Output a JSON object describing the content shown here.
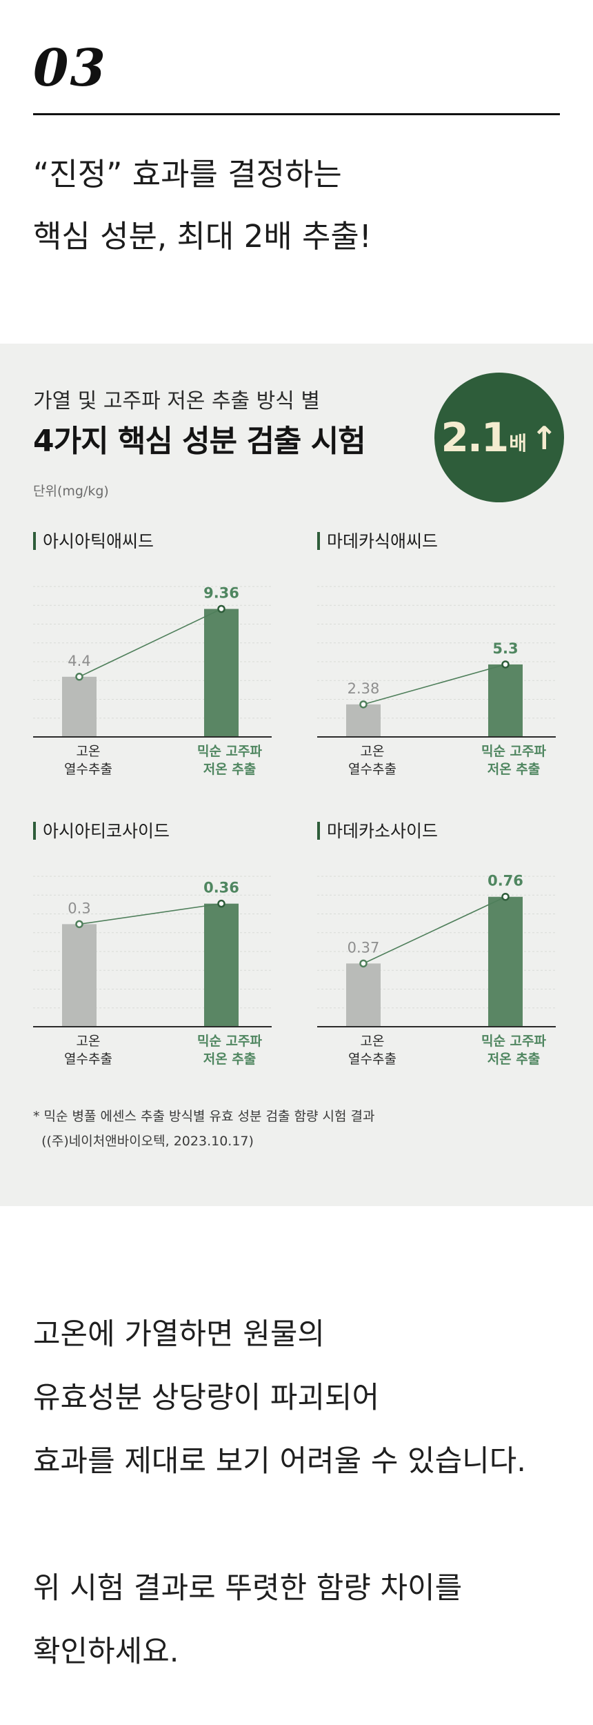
{
  "header": {
    "number": "03",
    "headline_line1": "“진정” 효과를 결정하는",
    "headline_line2": "핵심 성분, 최대 2배 추출!"
  },
  "panel": {
    "subtitle": "가열 및 고주파 저온 추출 방식 별",
    "title": "4가지 핵심 성분 검출 시험",
    "unit": "단위(mg/kg)",
    "badge": {
      "value": "2.1",
      "unit": "배",
      "arrow": "↑"
    },
    "note_line1": "* 믹순 병풀 에센스 추출 방식별 유효 성분 검출 함량 시험 결과",
    "note_line2": "  ((주)네이처앤바이오텍, 2023.10.17)"
  },
  "colors": {
    "accent_green": "#2e5d3a",
    "bar_green": "#5a8664",
    "bar_gray": "#b9bbb8",
    "label_green": "#4f8660",
    "panel_bg": "#eff0ee"
  },
  "chart_data": [
    {
      "type": "bar",
      "title": "아시아틱애씨드",
      "categories": [
        "고온\n열수추출",
        "믹순 고주파\n저온 추출"
      ],
      "values": [
        4.4,
        9.36
      ],
      "value_labels": [
        "4.4",
        "9.36"
      ],
      "ylim": [
        0,
        11
      ],
      "grid": true,
      "connector_line": true
    },
    {
      "type": "bar",
      "title": "마데카식애씨드",
      "categories": [
        "고온\n열수추출",
        "믹순 고주파\n저온 추출"
      ],
      "values": [
        2.38,
        5.3
      ],
      "value_labels": [
        "2.38",
        "5.3"
      ],
      "ylim": [
        0,
        11
      ],
      "grid": true,
      "connector_line": true
    },
    {
      "type": "bar",
      "title": "아시아티코사이드",
      "categories": [
        "고온\n열수추출",
        "믹순 고주파\n저온 추출"
      ],
      "values": [
        0.3,
        0.36
      ],
      "value_labels": [
        "0.3",
        "0.36"
      ],
      "ylim": [
        0,
        0.44
      ],
      "grid": true,
      "connector_line": true
    },
    {
      "type": "bar",
      "title": "마데카소사이드",
      "categories": [
        "고온\n열수추출",
        "믹순 고주파\n저온 추출"
      ],
      "values": [
        0.37,
        0.76
      ],
      "value_labels": [
        "0.37",
        "0.76"
      ],
      "ylim": [
        0,
        0.88
      ],
      "grid": true,
      "connector_line": true
    }
  ],
  "body": {
    "lines": [
      "고온에 가열하면 원물의",
      "유효성분 상당량이 파괴되어",
      "효과를 제대로 보기 어려울 수 있습니다.",
      "",
      "위 시험 결과로 뚜렷한 함량 차이를",
      "확인하세요."
    ]
  }
}
